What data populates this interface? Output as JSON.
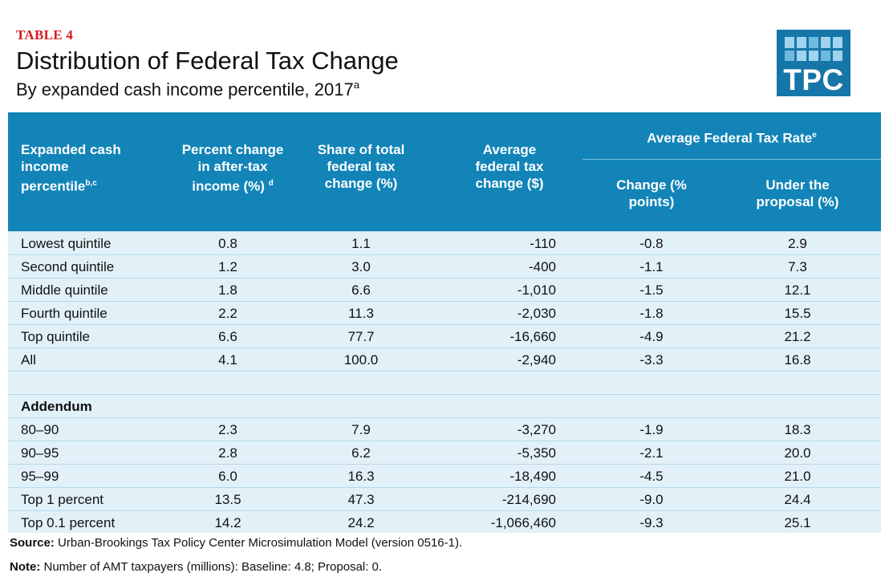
{
  "header": {
    "table_label": "TABLE 4",
    "title": "Distribution of Federal Tax Change",
    "subtitle": "By expanded cash income percentile, 2017",
    "subtitle_sup": "a",
    "logo_text": "TPC"
  },
  "colors": {
    "header_bg": "#1284b8",
    "body_bg": "#e2f1f8",
    "label_red": "#d71920",
    "logo_bg": "#1676a8"
  },
  "columns": {
    "c0": [
      "Expanded cash",
      "income",
      "percentile"
    ],
    "c0_sup": "b,c",
    "c1": [
      "Percent change",
      "in after-tax",
      "income (%)"
    ],
    "c1_sup": "d",
    "c2": [
      "Share of total",
      "federal tax",
      "change (%)"
    ],
    "c3": [
      "Average",
      "federal tax",
      "change ($)"
    ],
    "group": "Average Federal Tax Rate",
    "group_sup": "e",
    "c4": [
      "Change (%",
      "points)"
    ],
    "c5": [
      "Under the",
      "proposal (%)"
    ]
  },
  "rows": [
    [
      "Lowest quintile",
      "0.8",
      "1.1",
      "-110",
      "-0.8",
      "2.9"
    ],
    [
      "Second quintile",
      "1.2",
      "3.0",
      "-400",
      "-1.1",
      "7.3"
    ],
    [
      "Middle quintile",
      "1.8",
      "6.6",
      "-1,010",
      "-1.5",
      "12.1"
    ],
    [
      "Fourth quintile",
      "2.2",
      "11.3",
      "-2,030",
      "-1.8",
      "15.5"
    ],
    [
      "Top quintile",
      "6.6",
      "77.7",
      "-16,660",
      "-4.9",
      "21.2"
    ],
    [
      "All",
      "4.1",
      "100.0",
      "-2,940",
      "-3.3",
      "16.8"
    ]
  ],
  "addendum_label": "Addendum",
  "addendum_rows": [
    [
      "80–90",
      "2.3",
      "7.9",
      "-3,270",
      "-1.9",
      "18.3"
    ],
    [
      "90–95",
      "2.8",
      "6.2",
      "-5,350",
      "-2.1",
      "20.0"
    ],
    [
      "95–99",
      "6.0",
      "16.3",
      "-18,490",
      "-4.5",
      "21.0"
    ],
    [
      "Top 1 percent",
      "13.5",
      "47.3",
      "-214,690",
      "-9.0",
      "24.4"
    ],
    [
      "Top 0.1 percent",
      "14.2",
      "24.2",
      "-1,066,460",
      "-9.3",
      "25.1"
    ]
  ],
  "footer": {
    "source_label": "Source:",
    "source_text": "Urban-Brookings Tax Policy Center Microsimulation Model (version 0516-1).",
    "note_label": "Note:",
    "note_text": "Number of AMT taxpayers (millions): Baseline: 4.8; Proposal: 0."
  }
}
